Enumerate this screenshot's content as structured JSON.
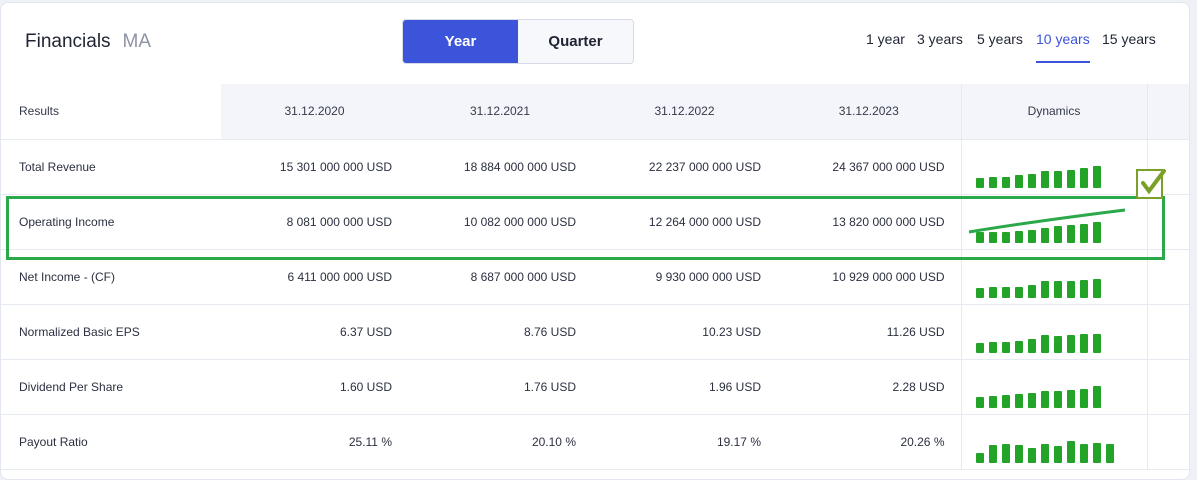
{
  "header": {
    "title": "Financials",
    "ticker": "MA"
  },
  "toggle": {
    "year": "Year",
    "quarter": "Quarter"
  },
  "periods": [
    "1 year",
    "3 years",
    "5 years",
    "10 years",
    "15 years"
  ],
  "selected_period": "10 years",
  "table": {
    "columns": [
      "Results",
      "31.12.2020",
      "31.12.2021",
      "31.12.2022",
      "31.12.2023",
      "Dynamics"
    ],
    "rows": [
      {
        "label": "Total Revenue",
        "values": [
          "15 301 000 000 USD",
          "18 884 000 000 USD",
          "22 237 000 000 USD",
          "24 367 000 000 USD"
        ]
      },
      {
        "label": "Operating Income",
        "values": [
          "8 081 000 000 USD",
          "10 082 000 000 USD",
          "12 264 000 000 USD",
          "13 820 000 000 USD"
        ]
      },
      {
        "label": "Net Income - (CF)",
        "values": [
          "6 411 000 000 USD",
          "8 687 000 000 USD",
          "9 930 000 000 USD",
          "10 929 000 000 USD"
        ]
      },
      {
        "label": "Normalized Basic EPS",
        "values": [
          "6.37 USD",
          "8.76 USD",
          "10.23 USD",
          "11.26 USD"
        ]
      },
      {
        "label": "Dividend Per Share",
        "values": [
          "1.60 USD",
          "1.76 USD",
          "1.96 USD",
          "2.28 USD"
        ]
      },
      {
        "label": "Payout Ratio",
        "values": [
          "25.11 %",
          "20.10 %",
          "19.17 %",
          "20.26 %"
        ]
      }
    ]
  },
  "sparklines": [
    [
      0.45,
      0.48,
      0.52,
      0.58,
      0.65,
      0.75,
      0.78,
      0.8,
      0.92,
      1.0
    ],
    [
      0.5,
      0.5,
      0.52,
      0.56,
      0.6,
      0.7,
      0.78,
      0.82,
      0.85,
      0.95
    ],
    [
      0.45,
      0.48,
      0.5,
      0.5,
      0.6,
      0.75,
      0.75,
      0.78,
      0.8,
      0.85
    ],
    [
      0.45,
      0.48,
      0.52,
      0.55,
      0.65,
      0.8,
      0.75,
      0.8,
      0.85,
      0.85
    ],
    [
      0.5,
      0.55,
      0.6,
      0.65,
      0.7,
      0.75,
      0.78,
      0.82,
      0.88,
      1.0
    ],
    [
      0.45,
      0.8,
      0.85,
      0.8,
      0.7,
      0.85,
      0.75,
      1.0,
      0.85,
      0.9,
      0.85
    ]
  ],
  "colors": {
    "accent": "#3b54d9",
    "bar": "#23a327",
    "highlight": "#2aa84a"
  }
}
